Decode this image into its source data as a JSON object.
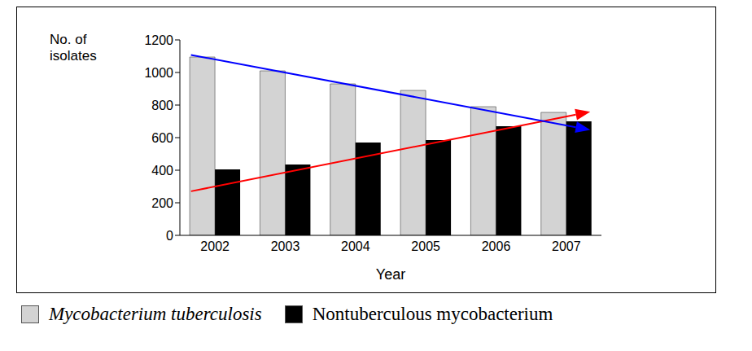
{
  "chart_data": {
    "type": "bar",
    "y_label": "No. of isolates",
    "x_label": "Year",
    "categories": [
      "2002",
      "2003",
      "2004",
      "2005",
      "2006",
      "2007"
    ],
    "series": [
      {
        "name": "Mycobacterium tuberculosis",
        "color": "#d3d3d3",
        "values": [
          1095,
          1010,
          930,
          890,
          790,
          755
        ]
      },
      {
        "name": "Nontuberculous mycobacterium",
        "color": "#000000",
        "values": [
          405,
          435,
          570,
          585,
          670,
          700
        ]
      }
    ],
    "ylim": [
      0,
      1200
    ],
    "yticks": [
      0,
      200,
      400,
      600,
      800,
      1000,
      1200
    ],
    "grid": false,
    "legend": "bottom",
    "trend_lines": [
      {
        "color": "#ff0000",
        "from": [
          "2002",
          300
        ],
        "to": [
          "2007",
          730
        ]
      },
      {
        "color": "#0000ff",
        "from": [
          "2002",
          1080
        ],
        "to": [
          "2007",
          675
        ]
      }
    ]
  }
}
